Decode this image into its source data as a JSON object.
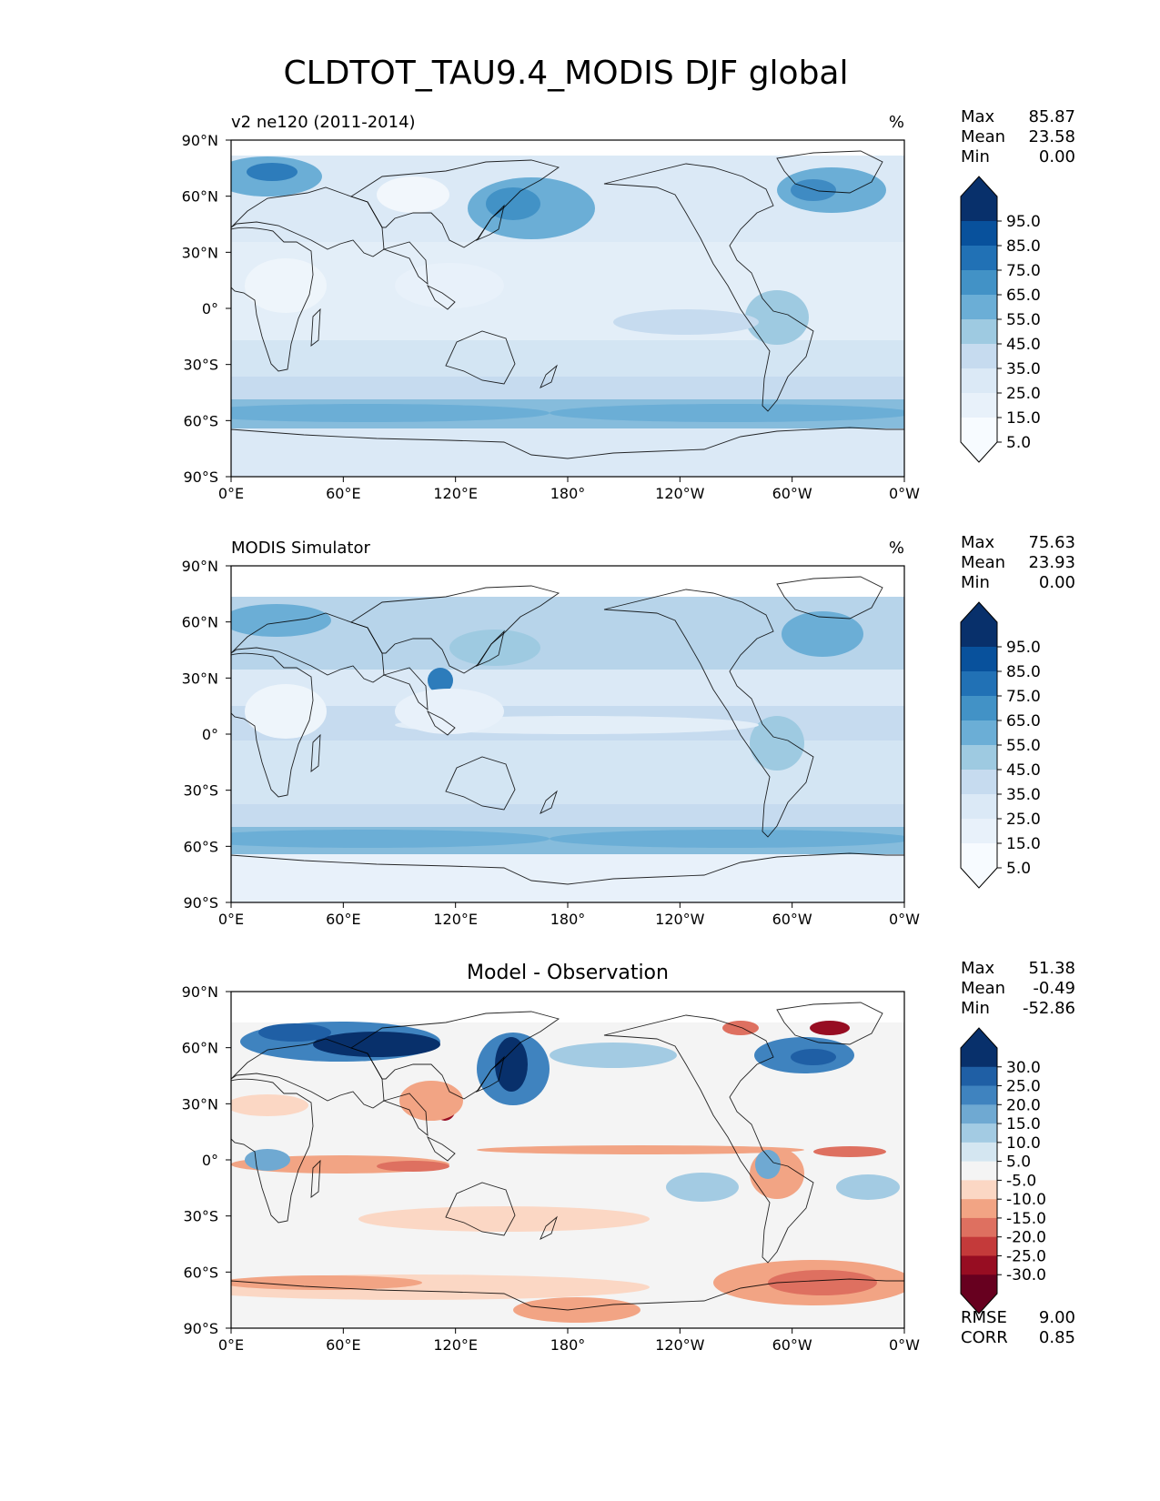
{
  "title": "CLDTOT_TAU9.4_MODIS DJF global",
  "x_ticks": [
    "0°E",
    "60°E",
    "120°E",
    "180°",
    "120°W",
    "60°W",
    "0°W"
  ],
  "y_ticks": [
    "90°N",
    "60°N",
    "30°N",
    "0°",
    "30°S",
    "60°S",
    "90°S"
  ],
  "stat_labels": {
    "max": "Max",
    "mean": "Mean",
    "min": "Min",
    "rmse": "RMSE",
    "corr": "CORR"
  },
  "panels": [
    {
      "left_title": "v2 ne120 (2011-2014)",
      "center_title": "",
      "units": "%",
      "stats": {
        "max": "85.87",
        "mean": "23.58",
        "min": "0.00"
      },
      "colorbar": {
        "labels": [
          "95.0",
          "85.0",
          "75.0",
          "65.0",
          "55.0",
          "45.0",
          "35.0",
          "25.0",
          "15.0",
          "5.0"
        ],
        "colors": [
          "#08306b",
          "#08519c",
          "#2171b5",
          "#4292c6",
          "#6baed6",
          "#9ecae1",
          "#c6dbef",
          "#dbe9f6",
          "#e8f1fa",
          "#f7fbff"
        ]
      }
    },
    {
      "left_title": "MODIS Simulator",
      "center_title": "",
      "units": "%",
      "stats": {
        "max": "75.63",
        "mean": "23.93",
        "min": "0.00"
      },
      "colorbar": {
        "labels": [
          "95.0",
          "85.0",
          "75.0",
          "65.0",
          "55.0",
          "45.0",
          "35.0",
          "25.0",
          "15.0",
          "5.0"
        ],
        "colors": [
          "#08306b",
          "#08519c",
          "#2171b5",
          "#4292c6",
          "#6baed6",
          "#9ecae1",
          "#c6dbef",
          "#dbe9f6",
          "#e8f1fa",
          "#f7fbff"
        ]
      }
    },
    {
      "left_title": "",
      "center_title": "Model - Observation",
      "units": "",
      "stats": {
        "max": "51.38",
        "mean": "-0.49",
        "min": "-52.86",
        "rmse": "9.00",
        "corr": "0.85"
      },
      "colorbar": {
        "labels": [
          "30.0",
          "25.0",
          "20.0",
          "15.0",
          "10.0",
          "5.0",
          "-5.0",
          "-10.0",
          "-15.0",
          "-20.0",
          "-25.0",
          "-30.0"
        ],
        "colors": [
          "#08306b",
          "#1f5fa5",
          "#3f83bf",
          "#6fa9d2",
          "#a3cbe3",
          "#d4e6f1",
          "#f4f4f4",
          "#fbd7c4",
          "#f2a484",
          "#de7060",
          "#c43a3a",
          "#970d22",
          "#67001f"
        ]
      }
    }
  ]
}
